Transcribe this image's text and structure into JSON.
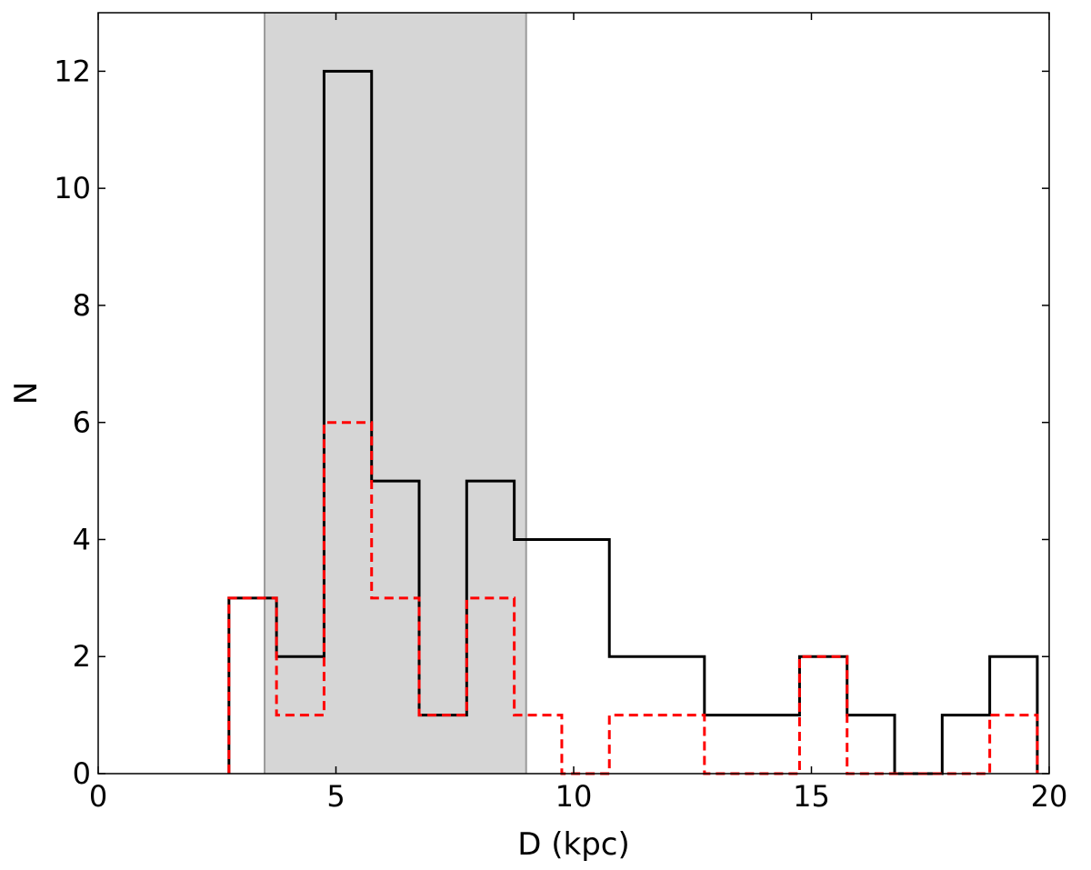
{
  "chart_data": {
    "type": "histogram",
    "title": "",
    "xlabel": "D (kpc)",
    "ylabel": "N",
    "xlim": [
      0,
      20
    ],
    "ylim": [
      0,
      13
    ],
    "xticks": [
      0,
      5,
      10,
      15,
      20
    ],
    "yticks": [
      0,
      2,
      4,
      6,
      8,
      10,
      12
    ],
    "grid": false,
    "legend": "none",
    "shaded_region": {
      "x_start": 3.5,
      "x_end": 9.0,
      "color": "#d6d6d6"
    },
    "bin_edges": [
      2.75,
      3.75,
      4.75,
      5.75,
      6.75,
      7.75,
      8.75,
      9.75,
      10.75,
      11.75,
      12.75,
      13.75,
      14.75,
      15.75,
      16.75,
      17.75,
      18.75,
      19.75
    ],
    "series": [
      {
        "values": [
          3,
          2,
          12,
          5,
          1,
          5,
          4,
          4,
          2,
          2,
          1,
          1,
          2,
          1,
          0,
          1,
          2
        ],
        "color": "#000000",
        "style": "solid"
      },
      {
        "values": [
          3,
          1,
          6,
          3,
          1,
          3,
          1,
          0,
          1,
          1,
          0,
          0,
          2,
          0,
          0,
          0,
          1
        ],
        "color": "#ff0000",
        "style": "dashed"
      }
    ]
  }
}
